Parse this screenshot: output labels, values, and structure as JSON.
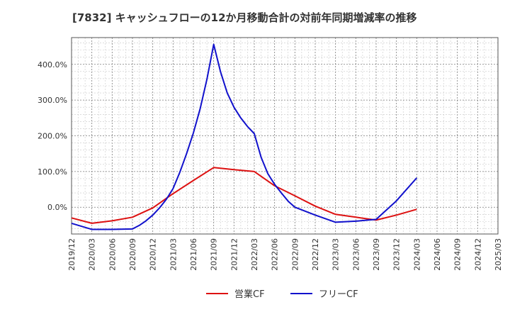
{
  "chart_data": {
    "type": "line",
    "title": "[7832]  キャッシュフローの12か月移動合計の対前年同期増減率の推移",
    "xlabel": "",
    "ylabel": "",
    "ylim": [
      -75,
      475
    ],
    "yticks": [
      0,
      100,
      200,
      300,
      400
    ],
    "ytick_labels": [
      "0.0%",
      "100.0%",
      "200.0%",
      "300.0%",
      "400.0%"
    ],
    "x_ticks": [
      "2019/12",
      "2020/03",
      "2020/06",
      "2020/09",
      "2020/12",
      "2021/03",
      "2021/06",
      "2021/09",
      "2021/12",
      "2022/03",
      "2022/06",
      "2022/09",
      "2022/12",
      "2023/03",
      "2023/06",
      "2023/09",
      "2023/12",
      "2024/03",
      "2024/06",
      "2024/09",
      "2024/12",
      "2025/03"
    ],
    "grid": true,
    "legend_position": "bottom",
    "series": [
      {
        "name": "営業CF",
        "color": "#dd1111",
        "x": [
          "2019/12",
          "2020/03",
          "2020/06",
          "2020/09",
          "2020/12",
          "2021/03",
          "2021/06",
          "2021/09",
          "2021/12",
          "2022/03",
          "2022/06",
          "2022/09",
          "2022/12",
          "2023/03",
          "2023/06",
          "2023/09",
          "2023/12",
          "2024/03"
        ],
        "values": [
          -30,
          -45,
          -38,
          -28,
          -2,
          38,
          75,
          111,
          105,
          100,
          60,
          32,
          3,
          -20,
          -28,
          -36,
          -22,
          -6
        ]
      },
      {
        "name": "フリーCF",
        "color": "#1111cc",
        "x": [
          "2019/12",
          "2020/03",
          "2020/06",
          "2020/09",
          "2020/10",
          "2020/11",
          "2020/12",
          "2021/01",
          "2021/02",
          "2021/03",
          "2021/04",
          "2021/05",
          "2021/06",
          "2021/07",
          "2021/08",
          "2021/09",
          "2021/10",
          "2021/11",
          "2021/12",
          "2022/01",
          "2022/02",
          "2022/03",
          "2022/04",
          "2022/05",
          "2022/06",
          "2022/07",
          "2022/08",
          "2022/09",
          "2022/12",
          "2023/03",
          "2023/06",
          "2023/09",
          "2023/12",
          "2024/03"
        ],
        "values": [
          -45,
          -62,
          -62,
          -61,
          -51,
          -38,
          -22,
          -2,
          22,
          52,
          98,
          150,
          208,
          276,
          358,
          456,
          380,
          320,
          280,
          250,
          226,
          206,
          140,
          94,
          64,
          40,
          17,
          0,
          -22,
          -42,
          -39,
          -34,
          18,
          82
        ]
      }
    ]
  }
}
